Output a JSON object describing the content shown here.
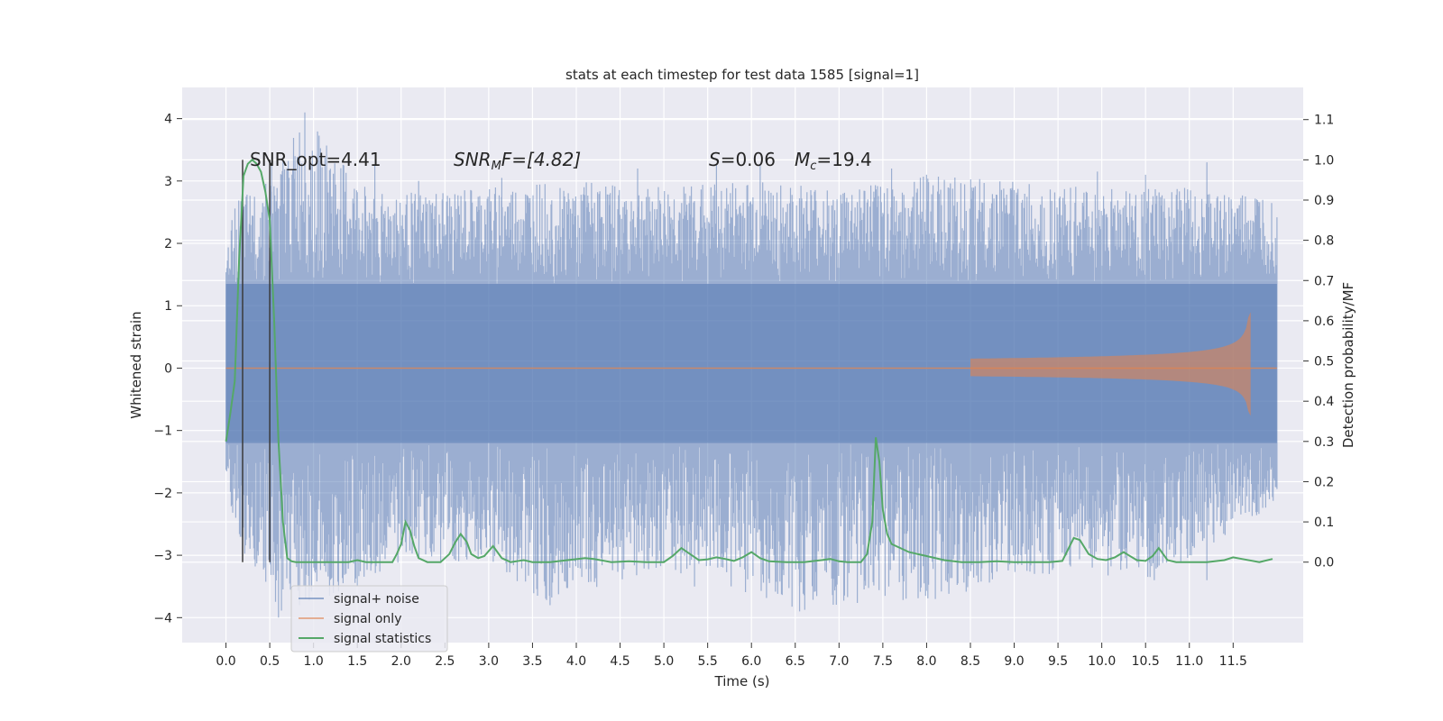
{
  "chart_data": {
    "type": "line",
    "title": "stats at each timestep for test data 1585 [signal=1]",
    "xlabel": "Time (s)",
    "ylabel": "Whitened strain",
    "y2label": "Detection probability/MF",
    "xlim": [
      -0.5,
      12.3
    ],
    "ylim": [
      -4.4,
      4.5
    ],
    "y2lim": [
      -0.2,
      1.18
    ],
    "xticks": [
      0.0,
      0.5,
      1.0,
      1.5,
      2.0,
      2.5,
      3.0,
      3.5,
      4.0,
      4.5,
      5.0,
      5.5,
      6.0,
      6.5,
      7.0,
      7.5,
      8.0,
      8.5,
      9.0,
      9.5,
      10.0,
      10.5,
      11.0,
      11.5
    ],
    "xtick_labels": [
      "0.0",
      "0.5",
      "1.0",
      "1.5",
      "2.0",
      "2.5",
      "3.0",
      "3.5",
      "4.0",
      "4.5",
      "5.0",
      "5.5",
      "6.0",
      "6.5",
      "7.0",
      "7.5",
      "8.0",
      "8.5",
      "9.0",
      "9.5",
      "10.0",
      "10.5",
      "11.0",
      "11.5"
    ],
    "yticks": [
      -4,
      -3,
      -2,
      -1,
      0,
      1,
      2,
      3,
      4
    ],
    "ytick_labels": [
      "−4",
      "−3",
      "−2",
      "−1",
      "0",
      "1",
      "2",
      "3",
      "4"
    ],
    "y2ticks": [
      0.0,
      0.1,
      0.2,
      0.3,
      0.4,
      0.5,
      0.6,
      0.7,
      0.8,
      0.9,
      1.0,
      1.1
    ],
    "y2tick_labels": [
      "0.0",
      "0.1",
      "0.2",
      "0.3",
      "0.4",
      "0.5",
      "0.6",
      "0.7",
      "0.8",
      "0.9",
      "1.0",
      "1.1"
    ],
    "grid": true,
    "legend_position": "bottom-left",
    "legend": [
      "signal+ noise",
      "signal only",
      "signal statistics"
    ],
    "annotations": {
      "snr_opt": "SNR_opt=4.41",
      "snr_mf_pre": "SNR",
      "snr_mf_sub": "M",
      "snr_mf_post": "F=[4.82]",
      "s_sym": "S",
      "s_val": "=0.06",
      "mc_sym": "M",
      "mc_sub": "c",
      "mc_val": "=19.4"
    },
    "window_lines_x": [
      0.19,
      0.5
    ],
    "noise": {
      "color": "#4c72b0",
      "x_range": [
        0.0,
        12.0
      ],
      "dense_band": [
        -1.2,
        1.35
      ],
      "upper_envelope": [
        [
          0.0,
          1.7
        ],
        [
          0.1,
          2.7
        ],
        [
          0.5,
          3.0
        ],
        [
          0.9,
          4.1
        ],
        [
          1.5,
          3.0
        ],
        [
          2.0,
          2.8
        ],
        [
          3.0,
          2.9
        ],
        [
          4.0,
          3.0
        ],
        [
          5.0,
          2.9
        ],
        [
          6.0,
          3.0
        ],
        [
          7.0,
          2.9
        ],
        [
          8.0,
          3.1
        ],
        [
          9.0,
          3.0
        ],
        [
          10.0,
          2.9
        ],
        [
          11.0,
          2.9
        ],
        [
          11.5,
          2.8
        ],
        [
          11.95,
          2.8
        ]
      ],
      "lower_envelope": [
        [
          0.0,
          -1.8
        ],
        [
          0.1,
          -2.8
        ],
        [
          0.6,
          -4.0
        ],
        [
          1.3,
          -3.6
        ],
        [
          2.0,
          -3.1
        ],
        [
          3.0,
          -3.1
        ],
        [
          3.7,
          -3.8
        ],
        [
          5.0,
          -3.2
        ],
        [
          6.5,
          -3.9
        ],
        [
          8.1,
          -3.7
        ],
        [
          9.4,
          -3.3
        ],
        [
          10.6,
          -3.4
        ],
        [
          11.5,
          -2.6
        ],
        [
          11.95,
          -2.3
        ]
      ],
      "spikes": [
        [
          0.9,
          4.1
        ],
        [
          0.52,
          3.25
        ],
        [
          0.72,
          3.05
        ],
        [
          1.7,
          3.25
        ],
        [
          2.2,
          3.0
        ],
        [
          3.15,
          3.05
        ],
        [
          4.7,
          3.2
        ],
        [
          5.6,
          3.25
        ],
        [
          6.1,
          3.25
        ],
        [
          7.6,
          3.2
        ],
        [
          8.0,
          3.1
        ],
        [
          9.95,
          3.15
        ],
        [
          10.5,
          3.1
        ],
        [
          11.2,
          3.3
        ],
        [
          0.6,
          -4.0
        ],
        [
          1.5,
          -3.5
        ],
        [
          3.7,
          -3.8
        ],
        [
          5.35,
          -3.5
        ],
        [
          6.55,
          -3.9
        ],
        [
          8.1,
          -3.7
        ],
        [
          9.4,
          -3.3
        ],
        [
          10.6,
          -3.4
        ],
        [
          11.2,
          -3.4
        ]
      ]
    },
    "signal_only": {
      "color": "#dd8452",
      "chirp_start": 8.5,
      "chirp_end": 11.7,
      "peak_amplitude": 0.9
    },
    "series": [
      {
        "name": "signal statistics",
        "axis": "y2",
        "color": "#55a868",
        "x": [
          0.0,
          0.05,
          0.1,
          0.15,
          0.2,
          0.25,
          0.3,
          0.35,
          0.4,
          0.45,
          0.5,
          0.55,
          0.6,
          0.65,
          0.7,
          0.75,
          0.8,
          0.9,
          1.0,
          1.2,
          1.4,
          1.5,
          1.6,
          1.7,
          1.8,
          1.9,
          1.95,
          2.0,
          2.05,
          2.1,
          2.15,
          2.2,
          2.3,
          2.45,
          2.55,
          2.62,
          2.68,
          2.75,
          2.8,
          2.88,
          2.95,
          3.05,
          3.15,
          3.25,
          3.4,
          3.5,
          3.7,
          3.9,
          4.1,
          4.2,
          4.4,
          4.6,
          4.8,
          5.0,
          5.1,
          5.2,
          5.3,
          5.4,
          5.5,
          5.6,
          5.7,
          5.8,
          5.9,
          6.0,
          6.1,
          6.2,
          6.4,
          6.6,
          6.8,
          6.9,
          7.0,
          7.1,
          7.25,
          7.32,
          7.38,
          7.42,
          7.46,
          7.5,
          7.55,
          7.6,
          7.7,
          7.8,
          8.0,
          8.2,
          8.4,
          8.6,
          8.8,
          9.0,
          9.2,
          9.4,
          9.55,
          9.6,
          9.68,
          9.75,
          9.85,
          9.95,
          10.05,
          10.15,
          10.25,
          10.3,
          10.4,
          10.5,
          10.58,
          10.65,
          10.75,
          10.85,
          11.0,
          11.2,
          11.4,
          11.5,
          11.6,
          11.8,
          11.95
        ],
        "y": [
          0.3,
          0.37,
          0.45,
          0.75,
          0.96,
          0.99,
          1.0,
          0.99,
          0.97,
          0.92,
          0.85,
          0.6,
          0.3,
          0.1,
          0.01,
          0.002,
          0.0,
          0.0,
          0.0,
          0.0,
          0.0,
          0.005,
          0.0,
          0.0,
          0.0,
          0.0,
          0.02,
          0.045,
          0.1,
          0.08,
          0.04,
          0.01,
          0.0,
          0.0,
          0.02,
          0.05,
          0.07,
          0.05,
          0.02,
          0.01,
          0.015,
          0.04,
          0.01,
          0.0,
          0.005,
          0.0,
          0.0,
          0.005,
          0.01,
          0.008,
          0.0,
          0.002,
          0.0,
          0.0,
          0.015,
          0.035,
          0.02,
          0.005,
          0.007,
          0.012,
          0.008,
          0.003,
          0.012,
          0.025,
          0.01,
          0.002,
          0.0,
          0.0,
          0.005,
          0.008,
          0.002,
          0.0,
          0.0,
          0.02,
          0.1,
          0.31,
          0.25,
          0.13,
          0.07,
          0.045,
          0.035,
          0.025,
          0.015,
          0.005,
          0.0,
          0.0,
          0.002,
          0.0,
          0.0,
          0.0,
          0.003,
          0.025,
          0.06,
          0.055,
          0.02,
          0.008,
          0.005,
          0.012,
          0.025,
          0.018,
          0.005,
          0.003,
          0.015,
          0.035,
          0.005,
          0.0,
          0.0,
          0.0,
          0.005,
          0.012,
          0.008,
          0.0,
          0.008
        ]
      }
    ]
  }
}
